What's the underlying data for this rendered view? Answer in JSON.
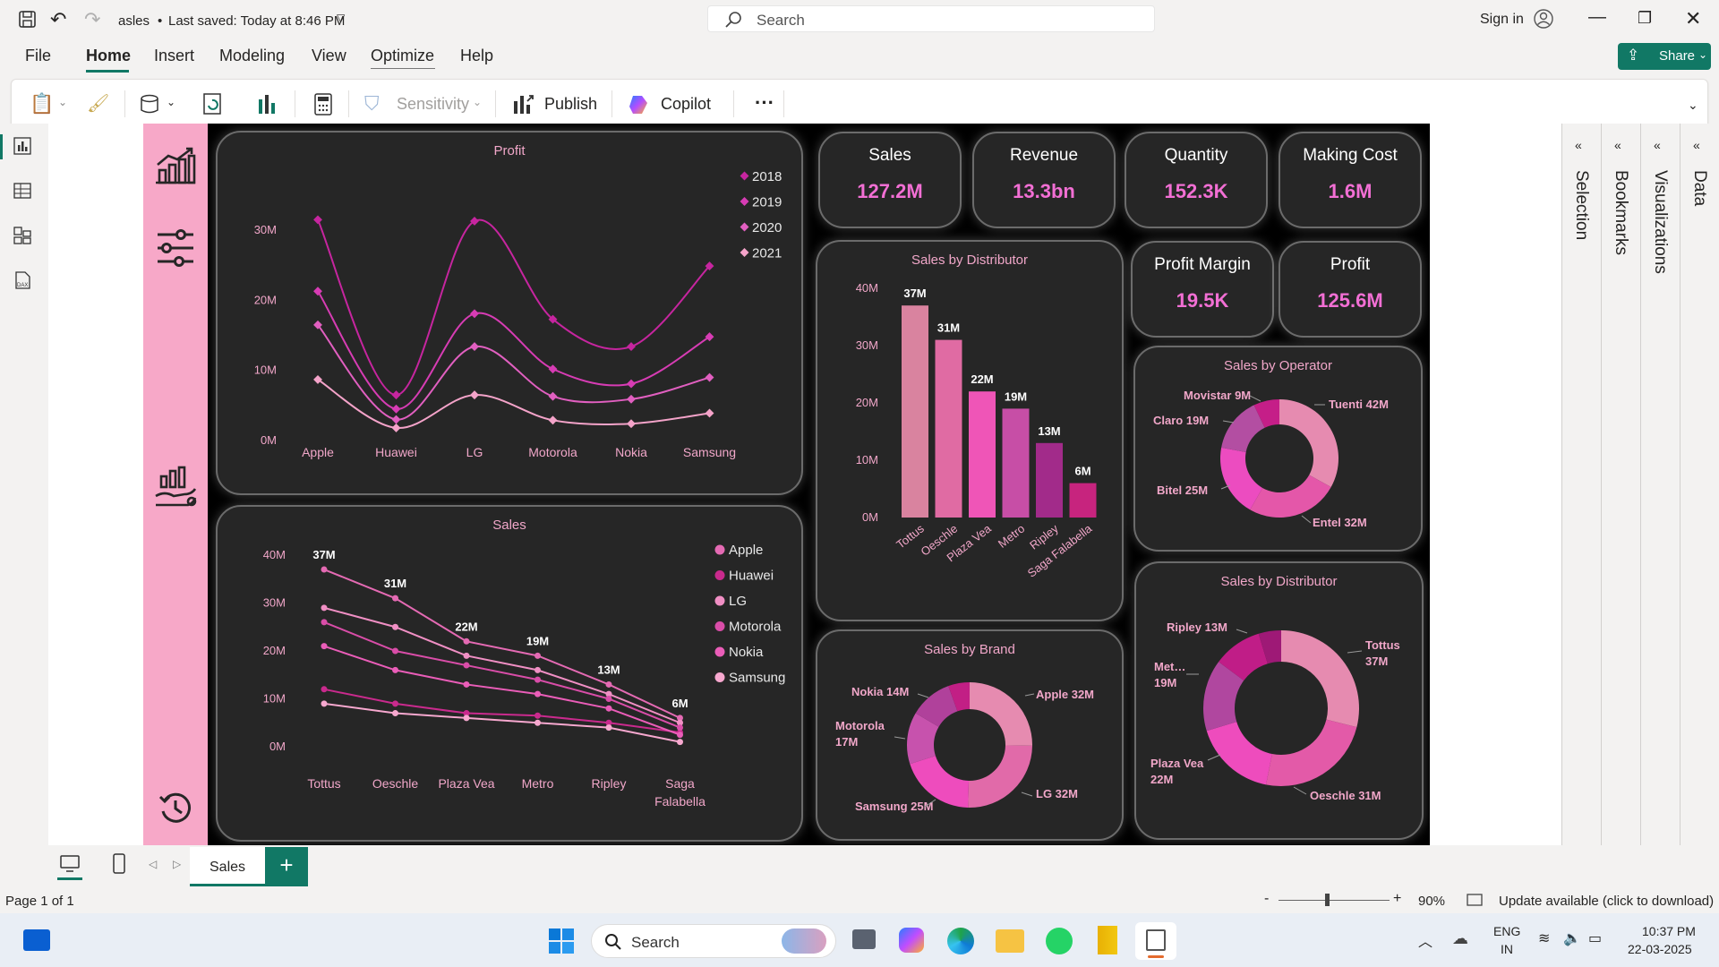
{
  "titlebar": {
    "file_name": "asles",
    "saved": "Last saved: Today at 8:46 PM",
    "search_placeholder": "Search",
    "sign_in": "Sign in"
  },
  "ribbon": {
    "tabs": [
      "File",
      "Home",
      "Insert",
      "Modeling",
      "View",
      "Optimize",
      "Help"
    ],
    "share": "Share"
  },
  "toolbar": {
    "sensitivity": "Sensitivity",
    "publish": "Publish",
    "copilot": "Copilot",
    "more": "···"
  },
  "kpis": [
    {
      "label": "Sales",
      "value": "127.2M"
    },
    {
      "label": "Revenue",
      "value": "13.3bn"
    },
    {
      "label": "Quantity",
      "value": "152.3K"
    },
    {
      "label": "Making Cost",
      "value": "1.6M"
    },
    {
      "label": "Profit Margin",
      "value": "19.5K"
    },
    {
      "label": "Profit",
      "value": "125.6M"
    }
  ],
  "chart_data": [
    {
      "id": "profit",
      "type": "line",
      "title": "Profit",
      "categories": [
        "Apple",
        "Huawei",
        "LG",
        "Motorola",
        "Nokia",
        "Samsung"
      ],
      "yticks": [
        "0M",
        "10M",
        "20M",
        "30M"
      ],
      "ylim": [
        0,
        35
      ],
      "legend_position": "top-right",
      "series": [
        {
          "name": "2018",
          "color": "#c6259f",
          "values": [
            31.5,
            6.5,
            31.3,
            17.3,
            13.4,
            24.9
          ]
        },
        {
          "name": "2019",
          "color": "#d73cb4",
          "values": [
            21.3,
            4.5,
            18.1,
            10.2,
            8.1,
            14.8
          ]
        },
        {
          "name": "2020",
          "color": "#e15fc0",
          "values": [
            16.5,
            3.0,
            13.4,
            6.3,
            5.9,
            9.0
          ]
        },
        {
          "name": "2021",
          "color": "#f4a3c9",
          "values": [
            8.7,
            1.8,
            6.5,
            2.9,
            2.4,
            3.9
          ]
        }
      ]
    },
    {
      "id": "sales-line",
      "type": "line",
      "title": "Sales",
      "categories": [
        "Tottus",
        "Oeschle",
        "Plaza Vea",
        "Metro",
        "Ripley",
        "Saga Falabella"
      ],
      "yticks": [
        "0M",
        "10M",
        "20M",
        "30M",
        "40M"
      ],
      "ylim": [
        0,
        40
      ],
      "legend_position": "top-right",
      "data_labels": [
        "37M",
        "31M",
        "22M",
        "19M",
        "13M",
        "6M"
      ],
      "series": [
        {
          "name": "Apple",
          "color": "#e46ab3",
          "values": [
            37,
            31,
            22,
            19,
            13,
            6
          ]
        },
        {
          "name": "Huawei",
          "color": "#c92a8d",
          "values": [
            12,
            9,
            7,
            6.5,
            5,
            3
          ]
        },
        {
          "name": "LG",
          "color": "#f08fc4",
          "values": [
            29,
            25,
            19,
            16,
            11,
            5
          ]
        },
        {
          "name": "Motorola",
          "color": "#d94da8",
          "values": [
            26,
            20,
            17,
            14,
            10,
            4
          ]
        },
        {
          "name": "Nokia",
          "color": "#ea5db8",
          "values": [
            21,
            16,
            13,
            11,
            8,
            2.5
          ]
        },
        {
          "name": "Samsung",
          "color": "#f7a8cf",
          "values": [
            9,
            7,
            6,
            5,
            4,
            1
          ]
        }
      ]
    },
    {
      "id": "dist-bar",
      "type": "bar",
      "title": "Sales by Distributor",
      "categories": [
        "Tottus",
        "Oeschle",
        "Plaza Vea",
        "Metro",
        "Ripley",
        "Saga Falabella"
      ],
      "values": [
        37,
        31,
        22,
        19,
        13,
        6
      ],
      "data_labels": [
        "37M",
        "31M",
        "22M",
        "19M",
        "13M",
        "6M"
      ],
      "yticks": [
        "0M",
        "10M",
        "20M",
        "30M",
        "40M"
      ],
      "ylim": [
        0,
        40
      ],
      "colors": [
        "#d9839f",
        "#e06ba3",
        "#ef55b7",
        "#c74ea6",
        "#a22b8a",
        "#c7247e"
      ]
    },
    {
      "id": "operator-donut",
      "type": "pie",
      "title": "Sales by Operator",
      "slices": [
        {
          "label": "Tuenti 42M",
          "value": 42,
          "color": "#e68bb0"
        },
        {
          "label": "Entel 32M",
          "value": 32,
          "color": "#e457a9"
        },
        {
          "label": "Bitel 25M",
          "value": 25,
          "color": "#ec4cc0"
        },
        {
          "label": "Claro 19M",
          "value": 19,
          "color": "#b34ea2"
        },
        {
          "label": "Movistar 9M",
          "value": 9,
          "color": "#c51e88"
        }
      ]
    },
    {
      "id": "brand-donut",
      "type": "pie",
      "title": "Sales by Brand",
      "slices": [
        {
          "label": "Apple 32M",
          "value": 32,
          "color": "#e68bb0"
        },
        {
          "label": "LG 32M",
          "value": 32,
          "color": "#e16aa9"
        },
        {
          "label": "Samsung 25M",
          "value": 25,
          "color": "#ee4cbd"
        },
        {
          "label": "Motorola 17M",
          "value": 17,
          "color": "#c752ad"
        },
        {
          "label": "Nokia 14M",
          "value": 14,
          "color": "#b0419b"
        },
        {
          "label": "",
          "value": 7,
          "color": "#c21f85"
        }
      ]
    },
    {
      "id": "dist-donut",
      "type": "pie",
      "title": "Sales by Distributor",
      "slices": [
        {
          "label": "Tottus 37M",
          "value": 37,
          "color": "#e68bb0"
        },
        {
          "label": "Oeschle 31M",
          "value": 31,
          "color": "#e35aa8"
        },
        {
          "label": "Plaza Vea 22M",
          "value": 22,
          "color": "#ee4cbd"
        },
        {
          "label": "Met… 19M",
          "value": 19,
          "color": "#b0479f"
        },
        {
          "label": "Ripley 13M",
          "value": 13,
          "color": "#c01d87"
        },
        {
          "label": "",
          "value": 6,
          "color": "#9e1976"
        }
      ]
    }
  ],
  "right_panels": [
    "Data",
    "Visualizations",
    "Bookmarks",
    "Selection"
  ],
  "page_tab": "Sales",
  "status": {
    "page": "Page 1 of 1",
    "zoom": "90%",
    "update": "Update available (click to download)"
  },
  "taskbar": {
    "search": "Search",
    "lang1": "ENG",
    "lang2": "IN",
    "time": "10:37 PM",
    "date": "22-03-2025"
  }
}
